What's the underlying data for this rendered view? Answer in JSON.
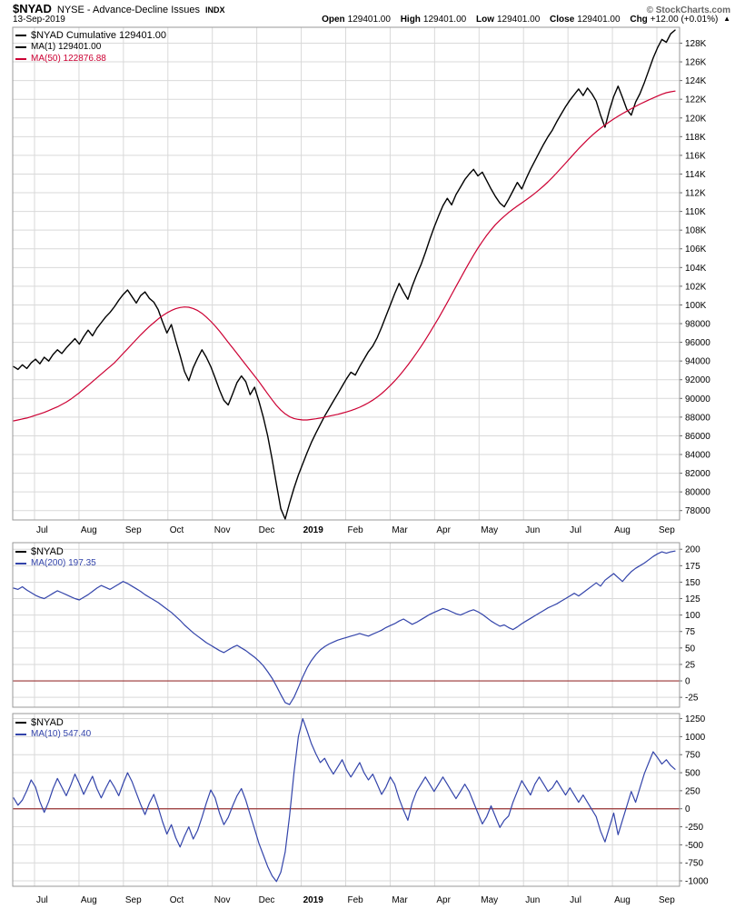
{
  "header": {
    "symbol": "$NYAD",
    "name": "NYSE - Advance-Decline Issues",
    "exchange": "INDX",
    "date": "13-Sep-2019",
    "copyright": "© StockCharts.com",
    "quote": {
      "open_label": "Open",
      "open": "129401.00",
      "high_label": "High",
      "high": "129401.00",
      "low_label": "Low",
      "low": "129401.00",
      "close_label": "Close",
      "close": "129401.00",
      "chg_label": "Chg",
      "chg": "+12.00 (+0.01%)",
      "direction_arrow": "▲"
    }
  },
  "colors": {
    "background": "#ffffff",
    "grid": "#d9d9d9",
    "frame": "#999999",
    "zero_line": "#993333",
    "line_black": "#000000",
    "line_red": "#cc0033",
    "line_blue": "#3344aa"
  },
  "chart_data": [
    {
      "id": "main",
      "type": "line",
      "title": "$NYAD Cumulative",
      "legend": [
        {
          "label": "$NYAD Cumulative 129401.00",
          "color": "#000000"
        },
        {
          "label": "MA(1) 129401.00",
          "color": "#000000"
        },
        {
          "label": "MA(50) 122876.88",
          "color": "#cc0033"
        }
      ],
      "x_categories": [
        {
          "t": "Jul"
        },
        {
          "t": "Aug"
        },
        {
          "t": "Sep"
        },
        {
          "t": "Oct"
        },
        {
          "t": "Nov"
        },
        {
          "t": "Dec"
        },
        {
          "t": "2019",
          "bold": true
        },
        {
          "t": "Feb"
        },
        {
          "t": "Mar"
        },
        {
          "t": "Apr"
        },
        {
          "t": "May"
        },
        {
          "t": "Jun"
        },
        {
          "t": "Jul"
        },
        {
          "t": "Aug"
        },
        {
          "t": "Sep"
        }
      ],
      "ylim": [
        77000,
        129700
      ],
      "y_ticks": [
        {
          "v": 128000,
          "label": "128K"
        },
        {
          "v": 126000,
          "label": "126K"
        },
        {
          "v": 124000,
          "label": "124K"
        },
        {
          "v": 122000,
          "label": "122K"
        },
        {
          "v": 120000,
          "label": "120K"
        },
        {
          "v": 118000,
          "label": "118K"
        },
        {
          "v": 116000,
          "label": "116K"
        },
        {
          "v": 114000,
          "label": "114K"
        },
        {
          "v": 112000,
          "label": "112K"
        },
        {
          "v": 110000,
          "label": "110K"
        },
        {
          "v": 108000,
          "label": "108K"
        },
        {
          "v": 106000,
          "label": "106K"
        },
        {
          "v": 104000,
          "label": "104K"
        },
        {
          "v": 102000,
          "label": "102K"
        },
        {
          "v": 100000,
          "label": "100K"
        },
        {
          "v": 98000,
          "label": "98000"
        },
        {
          "v": 96000,
          "label": "96000"
        },
        {
          "v": 94000,
          "label": "94000"
        },
        {
          "v": 92000,
          "label": "92000"
        },
        {
          "v": 90000,
          "label": "90000"
        },
        {
          "v": 88000,
          "label": "88000"
        },
        {
          "v": 86000,
          "label": "86000"
        },
        {
          "v": 84000,
          "label": "84000"
        },
        {
          "v": 82000,
          "label": "82000"
        },
        {
          "v": 80000,
          "label": "80000"
        },
        {
          "v": 78000,
          "label": "78000"
        }
      ],
      "series": [
        {
          "name": "$NYAD Cumulative",
          "color": "#000000",
          "width": 1.4,
          "values": [
            93400,
            93100,
            93600,
            93200,
            93800,
            94200,
            93700,
            94400,
            94000,
            94700,
            95200,
            94800,
            95400,
            95900,
            96400,
            95800,
            96600,
            97300,
            96700,
            97500,
            98100,
            98700,
            99200,
            99800,
            100500,
            101100,
            101600,
            100900,
            100200,
            101000,
            101400,
            100700,
            100300,
            99500,
            98200,
            97000,
            97900,
            96200,
            94600,
            92900,
            91900,
            93300,
            94300,
            95200,
            94400,
            93400,
            92200,
            90900,
            89800,
            89300,
            90500,
            91700,
            92400,
            91800,
            90400,
            91200,
            89700,
            88000,
            86000,
            83500,
            80800,
            78200,
            77100,
            78800,
            80400,
            81800,
            83000,
            84200,
            85300,
            86300,
            87200,
            88100,
            88900,
            89700,
            90500,
            91300,
            92100,
            92800,
            92500,
            93400,
            94200,
            95000,
            95600,
            96500,
            97600,
            98800,
            100000,
            101200,
            102300,
            101400,
            100600,
            102000,
            103200,
            104300,
            105600,
            107000,
            108300,
            109500,
            110600,
            111400,
            110700,
            111800,
            112600,
            113400,
            114000,
            114500,
            113800,
            114200,
            113300,
            112400,
            111600,
            110900,
            110500,
            111300,
            112200,
            113100,
            112400,
            113500,
            114500,
            115400,
            116300,
            117200,
            118000,
            118700,
            119600,
            120400,
            121200,
            121900,
            122500,
            123100,
            122400,
            123200,
            122600,
            121800,
            120300,
            119000,
            120800,
            122300,
            123400,
            122200,
            120900,
            120300,
            121700,
            122600,
            123800,
            125100,
            126400,
            127500,
            128400,
            128100,
            129000,
            129401
          ]
        },
        {
          "name": "MA(50)",
          "color": "#cc0033",
          "width": 1.2,
          "values": [
            87600,
            87700,
            87800,
            87900,
            88050,
            88200,
            88350,
            88500,
            88700,
            88900,
            89100,
            89350,
            89600,
            89900,
            90250,
            90600,
            91000,
            91400,
            91800,
            92200,
            92600,
            93000,
            93400,
            93800,
            94300,
            94800,
            95300,
            95800,
            96300,
            96800,
            97250,
            97700,
            98100,
            98500,
            98850,
            99150,
            99400,
            99600,
            99720,
            99780,
            99750,
            99620,
            99400,
            99100,
            98700,
            98250,
            97750,
            97200,
            96600,
            96000,
            95400,
            94800,
            94200,
            93600,
            93000,
            92400,
            91800,
            91150,
            90500,
            89850,
            89250,
            88750,
            88350,
            88050,
            87850,
            87750,
            87700,
            87700,
            87750,
            87820,
            87900,
            88000,
            88100,
            88200,
            88300,
            88420,
            88550,
            88700,
            88870,
            89060,
            89280,
            89530,
            89820,
            90150,
            90520,
            90930,
            91380,
            91870,
            92400,
            92970,
            93570,
            94200,
            94860,
            95550,
            96270,
            97020,
            97800,
            98600,
            99420,
            100260,
            101110,
            101970,
            102830,
            103680,
            104510,
            105310,
            106070,
            106780,
            107440,
            108040,
            108580,
            109060,
            109490,
            109880,
            110240,
            110580,
            110910,
            111240,
            111580,
            111940,
            112320,
            112730,
            113170,
            113640,
            114130,
            114640,
            115160,
            115680,
            116200,
            116710,
            117200,
            117670,
            118110,
            118520,
            118900,
            119250,
            119580,
            119890,
            120180,
            120460,
            120730,
            120990,
            121240,
            121480,
            121710,
            121930,
            122140,
            122340,
            122530,
            122700,
            122800,
            122876.88
          ]
        }
      ]
    },
    {
      "id": "mid",
      "type": "line",
      "title": "$NYAD MA(200)",
      "legend": [
        {
          "label": "$NYAD",
          "color": "#000000"
        },
        {
          "label": "MA(200) 197.35",
          "color": "#3344aa"
        }
      ],
      "x_categories": [
        {
          "t": "Jul"
        },
        {
          "t": "Aug"
        },
        {
          "t": "Sep"
        },
        {
          "t": "Oct"
        },
        {
          "t": "Nov"
        },
        {
          "t": "Dec"
        },
        {
          "t": "2019",
          "bold": true
        },
        {
          "t": "Feb"
        },
        {
          "t": "Mar"
        },
        {
          "t": "Apr"
        },
        {
          "t": "May"
        },
        {
          "t": "Jun"
        },
        {
          "t": "Jul"
        },
        {
          "t": "Aug"
        },
        {
          "t": "Sep"
        }
      ],
      "ylim": [
        -40,
        210
      ],
      "zero_line": 0,
      "y_ticks": [
        {
          "v": 200,
          "label": "200"
        },
        {
          "v": 175,
          "label": "175"
        },
        {
          "v": 150,
          "label": "150"
        },
        {
          "v": 125,
          "label": "125"
        },
        {
          "v": 100,
          "label": "100"
        },
        {
          "v": 75,
          "label": "75"
        },
        {
          "v": 50,
          "label": "50"
        },
        {
          "v": 25,
          "label": "25"
        },
        {
          "v": 0,
          "label": "0"
        },
        {
          "v": -25,
          "label": "-25"
        }
      ],
      "series": [
        {
          "name": "MA(200)",
          "color": "#3344aa",
          "width": 1.2,
          "values": [
            141,
            139,
            143,
            138,
            134,
            130,
            127,
            125,
            129,
            133,
            137,
            134,
            131,
            128,
            125,
            123,
            127,
            131,
            136,
            141,
            145,
            142,
            139,
            143,
            147,
            151,
            148,
            144,
            140,
            136,
            131,
            127,
            123,
            119,
            114,
            109,
            104,
            98,
            92,
            85,
            79,
            73,
            68,
            63,
            58,
            54,
            50,
            46,
            43,
            47,
            51,
            54,
            50,
            46,
            41,
            36,
            30,
            23,
            14,
            4,
            -8,
            -21,
            -33,
            -36,
            -25,
            -10,
            6,
            20,
            31,
            40,
            47,
            52,
            56,
            59,
            62,
            64,
            66,
            68,
            70,
            72,
            70,
            68,
            71,
            74,
            77,
            81,
            84,
            87,
            91,
            94,
            90,
            86,
            89,
            93,
            97,
            101,
            104,
            107,
            110,
            108,
            105,
            102,
            100,
            103,
            106,
            108,
            105,
            101,
            96,
            91,
            87,
            83,
            85,
            81,
            78,
            82,
            87,
            91,
            95,
            99,
            103,
            107,
            111,
            114,
            117,
            121,
            125,
            129,
            133,
            129,
            134,
            139,
            144,
            149,
            144,
            153,
            158,
            163,
            157,
            151,
            159,
            166,
            171,
            175,
            179,
            184,
            189,
            193,
            196,
            194,
            196,
            197.35
          ]
        }
      ]
    },
    {
      "id": "low",
      "type": "line",
      "title": "$NYAD MA(10)",
      "legend": [
        {
          "label": "$NYAD",
          "color": "#000000"
        },
        {
          "label": "MA(10) 547.40",
          "color": "#3344aa"
        }
      ],
      "x_categories": [
        {
          "t": "Jul"
        },
        {
          "t": "Aug"
        },
        {
          "t": "Sep"
        },
        {
          "t": "Oct"
        },
        {
          "t": "Nov"
        },
        {
          "t": "Dec"
        },
        {
          "t": "2019",
          "bold": true
        },
        {
          "t": "Feb"
        },
        {
          "t": "Mar"
        },
        {
          "t": "Apr"
        },
        {
          "t": "May"
        },
        {
          "t": "Jun"
        },
        {
          "t": "Jul"
        },
        {
          "t": "Aug"
        },
        {
          "t": "Sep"
        }
      ],
      "ylim": [
        -1075,
        1320
      ],
      "zero_line": 0,
      "y_ticks": [
        {
          "v": 1250,
          "label": "1250"
        },
        {
          "v": 1000,
          "label": "1000"
        },
        {
          "v": 750,
          "label": "750"
        },
        {
          "v": 500,
          "label": "500"
        },
        {
          "v": 250,
          "label": "250"
        },
        {
          "v": 0,
          "label": "0"
        },
        {
          "v": -250,
          "label": "-250"
        },
        {
          "v": -500,
          "label": "-500"
        },
        {
          "v": -750,
          "label": "-750"
        },
        {
          "v": -1000,
          "label": "-1000"
        }
      ],
      "series": [
        {
          "name": "MA(10)",
          "color": "#3344aa",
          "width": 1.2,
          "values": [
            150,
            50,
            120,
            250,
            400,
            300,
            100,
            -50,
            100,
            280,
            420,
            300,
            180,
            320,
            480,
            350,
            200,
            330,
            450,
            280,
            150,
            280,
            400,
            300,
            180,
            350,
            500,
            380,
            220,
            60,
            -80,
            80,
            200,
            20,
            -180,
            -350,
            -220,
            -400,
            -530,
            -380,
            -250,
            -420,
            -300,
            -120,
            80,
            260,
            150,
            -60,
            -220,
            -120,
            40,
            180,
            280,
            120,
            -80,
            -280,
            -480,
            -640,
            -800,
            -930,
            -1010,
            -880,
            -600,
            -100,
            500,
            1000,
            1250,
            1080,
            900,
            760,
            640,
            700,
            580,
            480,
            580,
            680,
            540,
            440,
            540,
            640,
            500,
            400,
            480,
            340,
            200,
            300,
            440,
            340,
            140,
            -20,
            -160,
            80,
            240,
            340,
            440,
            340,
            240,
            340,
            440,
            340,
            240,
            140,
            240,
            340,
            240,
            90,
            -60,
            -210,
            -110,
            40,
            -110,
            -260,
            -160,
            -100,
            90,
            240,
            390,
            290,
            190,
            340,
            440,
            340,
            240,
            290,
            390,
            290,
            190,
            290,
            190,
            90,
            190,
            90,
            -10,
            -110,
            -310,
            -460,
            -260,
            -60,
            -360,
            -160,
            40,
            240,
            90,
            290,
            490,
            640,
            790,
            710,
            620,
            680,
            600,
            547.4
          ]
        }
      ]
    }
  ]
}
